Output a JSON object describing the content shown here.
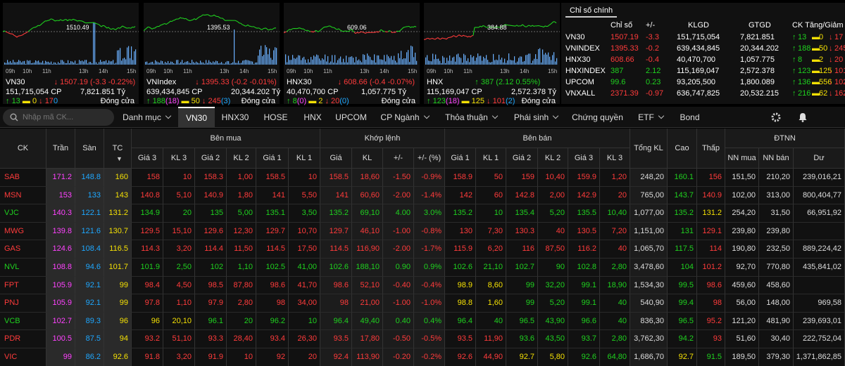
{
  "colors": {
    "up": "#1fd11f",
    "down": "#ff3b3b",
    "ref": "#f4e004",
    "ceil": "#ff42ff",
    "floor": "#1ea7ff"
  },
  "mini_charts": [
    {
      "name": "VN30",
      "value": "1507.19",
      "change": "(-3.3 -0.22%)",
      "dir": "down",
      "volume": "151,715,054",
      "vol_unit": "CP",
      "amount": "7,821.851 Tỷ",
      "up": "13",
      "ceil": "",
      "ref": "0",
      "down": "17",
      "floor": "0",
      "status": "Đóng cửa",
      "ref_label": "1510.49",
      "arrow": "down"
    },
    {
      "name": "VNIndex",
      "value": "1395.33",
      "change": "(-0.2 -0.01%)",
      "dir": "down",
      "volume": "639,434,845",
      "vol_unit": "CP",
      "amount": "20,344.202 Tỷ",
      "up": "188",
      "ceil": "(18)",
      "ref": "50",
      "down": "245",
      "floor": "(3)",
      "status": "Đóng cửa",
      "ref_label": "1395.53",
      "arrow": "down"
    },
    {
      "name": "HNX30",
      "value": "608.66",
      "change": "(-0.4 -0.07%)",
      "dir": "down",
      "volume": "40,470,700",
      "vol_unit": "CP",
      "amount": "1,057.775 Tỷ",
      "up": "8",
      "ceil": "(0)",
      "ref": "2",
      "down": "20",
      "floor": "(0)",
      "status": "Đóng cửa",
      "ref_label": "609.06",
      "arrow": "down"
    },
    {
      "name": "HNX",
      "value": "387",
      "change": "(2.12 0.55%)",
      "dir": "up",
      "volume": "115,169,047",
      "vol_unit": "CP",
      "amount": "2,572.378 Tỷ",
      "up": "123",
      "ceil": "(18)",
      "ref": "125",
      "down": "101",
      "floor": "(2)",
      "status": "Đóng cửa",
      "ref_label": "384.88",
      "arrow": "up"
    }
  ],
  "time_ticks": [
    "09h",
    "10h",
    "11h",
    "13h",
    "14h",
    "15h"
  ],
  "time_ticks_hnx": [
    "09h",
    "10h",
    "11h",
    "13h",
    "14h",
    "15h"
  ],
  "summary": {
    "tab": "Chỉ số chính",
    "headers": [
      "Chỉ số",
      "+/-",
      "KLGD",
      "GTGD",
      "CK Tăng/Giảm"
    ],
    "rows": [
      {
        "name": "VN30",
        "value": "1507.19",
        "chg": "-3.3",
        "vol": "151,715,054",
        "amt": "7,821.851",
        "up": "13",
        "ref": "0",
        "down": "17",
        "dir": "down"
      },
      {
        "name": "VNINDEX",
        "value": "1395.33",
        "chg": "-0.2",
        "vol": "639,434,845",
        "amt": "20,344.202",
        "up": "188",
        "ref": "50",
        "down": "245",
        "dir": "down"
      },
      {
        "name": "HNX30",
        "value": "608.66",
        "chg": "-0.4",
        "vol": "40,470,700",
        "amt": "1,057.775",
        "up": "8",
        "ref": "2",
        "down": "20",
        "dir": "down"
      },
      {
        "name": "HNXINDEX",
        "value": "387",
        "chg": "2.12",
        "vol": "115,169,047",
        "amt": "2,572.378",
        "up": "123",
        "ref": "125",
        "down": "101",
        "dir": "up"
      },
      {
        "name": "UPCOM",
        "value": "99.6",
        "chg": "0.23",
        "vol": "93,205,500",
        "amt": "1,800.089",
        "up": "136",
        "ref": "556",
        "down": "102",
        "dir": "up"
      },
      {
        "name": "VNXALL",
        "value": "2371.39",
        "chg": "-0.97",
        "vol": "636,747,825",
        "amt": "20,532.215",
        "up": "216",
        "ref": "62",
        "down": "162",
        "dir": "down"
      }
    ]
  },
  "toolbar": {
    "search_placeholder": "Nhập mã CK...",
    "tabs": [
      "Danh mục",
      "VN30",
      "HNX30",
      "HOSE",
      "HNX",
      "UPCOM",
      "CP Ngành",
      "Thỏa thuận",
      "Phái sinh",
      "Chứng quyền",
      "ETF",
      "Bond"
    ],
    "dropdown_tabs": [
      0,
      6,
      7,
      8,
      10
    ],
    "active_tab": 1
  },
  "board": {
    "headers": {
      "ck": "CK",
      "tran": "Trần",
      "san": "Sàn",
      "tc": "TC",
      "ben_mua": "Bên mua",
      "khop_lenh": "Khớp lệnh",
      "ben_ban": "Bên bán",
      "tong_kl": "Tổng KL",
      "cao": "Cao",
      "thap": "Thấp",
      "dtnn": "ĐTNN",
      "buy_sub": [
        "Giá 3",
        "KL 3",
        "Giá 2",
        "KL 2",
        "Giá 1",
        "KL 1"
      ],
      "match_sub": [
        "Giá",
        "KL",
        "+/-",
        "+/- (%)"
      ],
      "sell_sub": [
        "Giá 1",
        "KL 1",
        "Giá 2",
        "KL 2",
        "Giá 3",
        "KL 3"
      ],
      "dtnn_sub": [
        "NN mua",
        "NN bán",
        "Dư"
      ]
    },
    "rows": [
      [
        "SAB",
        "171.2",
        "148.8",
        "160",
        "158",
        "10",
        "158.3",
        "1,00",
        "158.5",
        "10",
        "158.5",
        "18,60",
        "-1.50",
        "-0.9%",
        "158.9",
        "50",
        "159",
        "10,40",
        "159.9",
        "1,20",
        "248,20",
        "160.1",
        "156",
        "151,50",
        "210,20",
        "239,016,21"
      ],
      [
        "MSN",
        "153",
        "133",
        "143",
        "140.8",
        "5,10",
        "140.9",
        "1,80",
        "141",
        "5,50",
        "141",
        "60,60",
        "-2.00",
        "-1.4%",
        "142",
        "60",
        "142.8",
        "2,00",
        "142.9",
        "20",
        "765,00",
        "143.7",
        "140.9",
        "102,00",
        "313,00",
        "800,404,77"
      ],
      [
        "VJC",
        "140.3",
        "122.1",
        "131.2",
        "134.9",
        "20",
        "135",
        "5,00",
        "135.1",
        "3,50",
        "135.2",
        "69,10",
        "4.00",
        "3.0%",
        "135.2",
        "10",
        "135.4",
        "5,20",
        "135.5",
        "10,40",
        "1,077,00",
        "135.2",
        "131.2",
        "254,20",
        "31,50",
        "66,951,92"
      ],
      [
        "MWG",
        "139.8",
        "121.6",
        "130.7",
        "129.5",
        "15,10",
        "129.6",
        "12,30",
        "129.7",
        "10,70",
        "129.7",
        "46,10",
        "-1.00",
        "-0.8%",
        "130",
        "7,30",
        "130.3",
        "40",
        "130.5",
        "7,20",
        "1,151,00",
        "131",
        "129.1",
        "239,80",
        "239,80",
        ""
      ],
      [
        "GAS",
        "124.6",
        "108.4",
        "116.5",
        "114.3",
        "3,20",
        "114.4",
        "11,50",
        "114.5",
        "17,50",
        "114.5",
        "116,90",
        "-2.00",
        "-1.7%",
        "115.9",
        "6,20",
        "116",
        "87,50",
        "116.2",
        "40",
        "1,065,70",
        "117.5",
        "114",
        "190,80",
        "232,50",
        "889,224,42"
      ],
      [
        "NVL",
        "108.8",
        "94.6",
        "101.7",
        "101.9",
        "2,50",
        "102",
        "1,10",
        "102.5",
        "41,00",
        "102.6",
        "188,10",
        "0.90",
        "0.9%",
        "102.6",
        "21,10",
        "102.7",
        "90",
        "102.8",
        "2,80",
        "3,478,60",
        "104",
        "101.2",
        "92,70",
        "770,80",
        "435,841,02"
      ],
      [
        "FPT",
        "105.9",
        "92.1",
        "99",
        "98.4",
        "4,50",
        "98.5",
        "87,80",
        "98.6",
        "41,70",
        "98.6",
        "52,10",
        "-0.40",
        "-0.4%",
        "98.9",
        "8,60",
        "99",
        "32,20",
        "99.1",
        "18,90",
        "1,534,30",
        "99.5",
        "98.6",
        "459,60",
        "458,60",
        ""
      ],
      [
        "PNJ",
        "105.9",
        "92.1",
        "99",
        "97.8",
        "1,10",
        "97.9",
        "2,80",
        "98",
        "34,00",
        "98",
        "21,00",
        "-1.00",
        "-1.0%",
        "98.8",
        "1,60",
        "99",
        "5,20",
        "99.1",
        "40",
        "540,90",
        "99.4",
        "98",
        "56,00",
        "148,00",
        "969,58"
      ],
      [
        "VCB",
        "102.7",
        "89.3",
        "96",
        "96",
        "20,10",
        "96.1",
        "20",
        "96.2",
        "10",
        "96.4",
        "49,40",
        "0.40",
        "0.4%",
        "96.4",
        "40",
        "96.5",
        "43,90",
        "96.6",
        "40",
        "836,30",
        "96.5",
        "95.2",
        "121,20",
        "481,90",
        "239,693,01"
      ],
      [
        "PDR",
        "100.5",
        "87.5",
        "94",
        "93.2",
        "51,10",
        "93.3",
        "28,40",
        "93.4",
        "26,30",
        "93.5",
        "17,80",
        "-0.50",
        "-0.5%",
        "93.5",
        "11,90",
        "93.6",
        "43,50",
        "93.7",
        "2,80",
        "3,762,30",
        "94.2",
        "93",
        "51,60",
        "30,40",
        "222,752,04"
      ],
      [
        "VIC",
        "99",
        "86.2",
        "92.6",
        "91.8",
        "3,20",
        "91.9",
        "10",
        "92",
        "20",
        "92.4",
        "113,90",
        "-0.20",
        "-0.2%",
        "92.6",
        "44,90",
        "92.7",
        "5,80",
        "92.6",
        "64,80",
        "1,686,70",
        "92.7",
        "91.5",
        "189,50",
        "379,30",
        "1,371,862,85"
      ]
    ],
    "row_colors": [
      [
        "down",
        "down",
        "down",
        "down",
        "down",
        "down",
        "down",
        "down",
        "down",
        "down",
        "down",
        "down",
        "down",
        "down",
        "down",
        "down",
        "down",
        "up",
        "down",
        "down"
      ],
      [
        "down",
        "down",
        "down",
        "down",
        "down",
        "down",
        "down",
        "down",
        "down",
        "down",
        "down",
        "down",
        "down",
        "down",
        "down",
        "down",
        "down",
        "up",
        "down",
        "down"
      ],
      [
        "up",
        "up",
        "up",
        "up",
        "up",
        "up",
        "up",
        "up",
        "up",
        "up",
        "up",
        "up",
        "up",
        "up",
        "up",
        "up",
        "up",
        "up",
        "ref",
        "ref"
      ],
      [
        "down",
        "down",
        "down",
        "down",
        "down",
        "down",
        "down",
        "down",
        "down",
        "down",
        "down",
        "down",
        "down",
        "down",
        "down",
        "down",
        "down",
        "up",
        "down",
        "down"
      ],
      [
        "down",
        "down",
        "down",
        "down",
        "down",
        "down",
        "down",
        "down",
        "down",
        "down",
        "down",
        "down",
        "down",
        "down",
        "down",
        "down",
        "down",
        "up",
        "down",
        "down"
      ],
      [
        "up",
        "up",
        "up",
        "up",
        "up",
        "up",
        "up",
        "up",
        "up",
        "up",
        "up",
        "up",
        "up",
        "up",
        "up",
        "up",
        "up",
        "up",
        "down",
        "down"
      ],
      [
        "down",
        "down",
        "down",
        "down",
        "down",
        "down",
        "down",
        "down",
        "down",
        "down",
        "ref",
        "ref",
        "up",
        "up",
        "up",
        "up",
        "up",
        "up",
        "down",
        "down"
      ],
      [
        "down",
        "down",
        "down",
        "down",
        "down",
        "down",
        "down",
        "down",
        "down",
        "down",
        "ref",
        "ref",
        "up",
        "up",
        "up",
        "up",
        "up",
        "up",
        "down",
        "down"
      ],
      [
        "ref",
        "ref",
        "up",
        "up",
        "up",
        "up",
        "up",
        "up",
        "up",
        "up",
        "up",
        "up",
        "up",
        "up",
        "up",
        "up",
        "up",
        "up",
        "down",
        "down"
      ],
      [
        "down",
        "down",
        "down",
        "down",
        "down",
        "down",
        "down",
        "down",
        "down",
        "down",
        "down",
        "down",
        "up",
        "up",
        "up",
        "up",
        "up",
        "up",
        "down",
        "down"
      ],
      [
        "down",
        "down",
        "down",
        "down",
        "down",
        "down",
        "down",
        "down",
        "down",
        "down",
        "down",
        "down",
        "ref",
        "ref",
        "up",
        "up",
        "ref",
        "ref",
        "up",
        "down"
      ]
    ]
  }
}
